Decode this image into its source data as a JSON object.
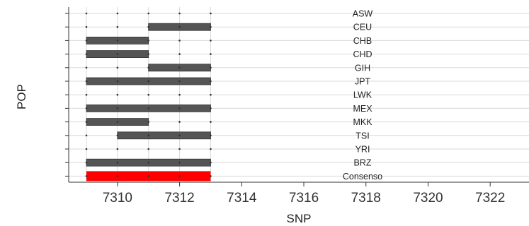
{
  "chart_data": {
    "type": "bar",
    "xlabel": "SNP",
    "ylabel": "POP",
    "xlim": [
      7308.5,
      7323.5
    ],
    "x_ticks": [
      7310,
      7312,
      7314,
      7316,
      7318,
      7320,
      7322
    ],
    "x_tick_labels": [
      "7310",
      "7312",
      "7314",
      "7316",
      "7318",
      "7320",
      "7322"
    ],
    "snp_points": [
      7309,
      7310,
      7311,
      7312,
      7313
    ],
    "grid": true,
    "colors": {
      "segment": "#555555",
      "consensus": "#ff0000",
      "grid": "#d9d9d9"
    },
    "rows": [
      {
        "pop": "ASW",
        "start": null,
        "end": null
      },
      {
        "pop": "CEU",
        "start": 7311,
        "end": 7313
      },
      {
        "pop": "CHB",
        "start": 7309,
        "end": 7311
      },
      {
        "pop": "CHD",
        "start": 7309,
        "end": 7311
      },
      {
        "pop": "GIH",
        "start": 7311,
        "end": 7313
      },
      {
        "pop": "JPT",
        "start": 7309,
        "end": 7313
      },
      {
        "pop": "LWK",
        "start": null,
        "end": null
      },
      {
        "pop": "MEX",
        "start": 7309,
        "end": 7313
      },
      {
        "pop": "MKK",
        "start": 7309,
        "end": 7311
      },
      {
        "pop": "TSI",
        "start": 7310,
        "end": 7313
      },
      {
        "pop": "YRI",
        "start": null,
        "end": null
      },
      {
        "pop": "BRZ",
        "start": 7309,
        "end": 7313
      },
      {
        "pop": "Consenso",
        "start": 7309,
        "end": 7313,
        "consensus": true
      }
    ]
  }
}
